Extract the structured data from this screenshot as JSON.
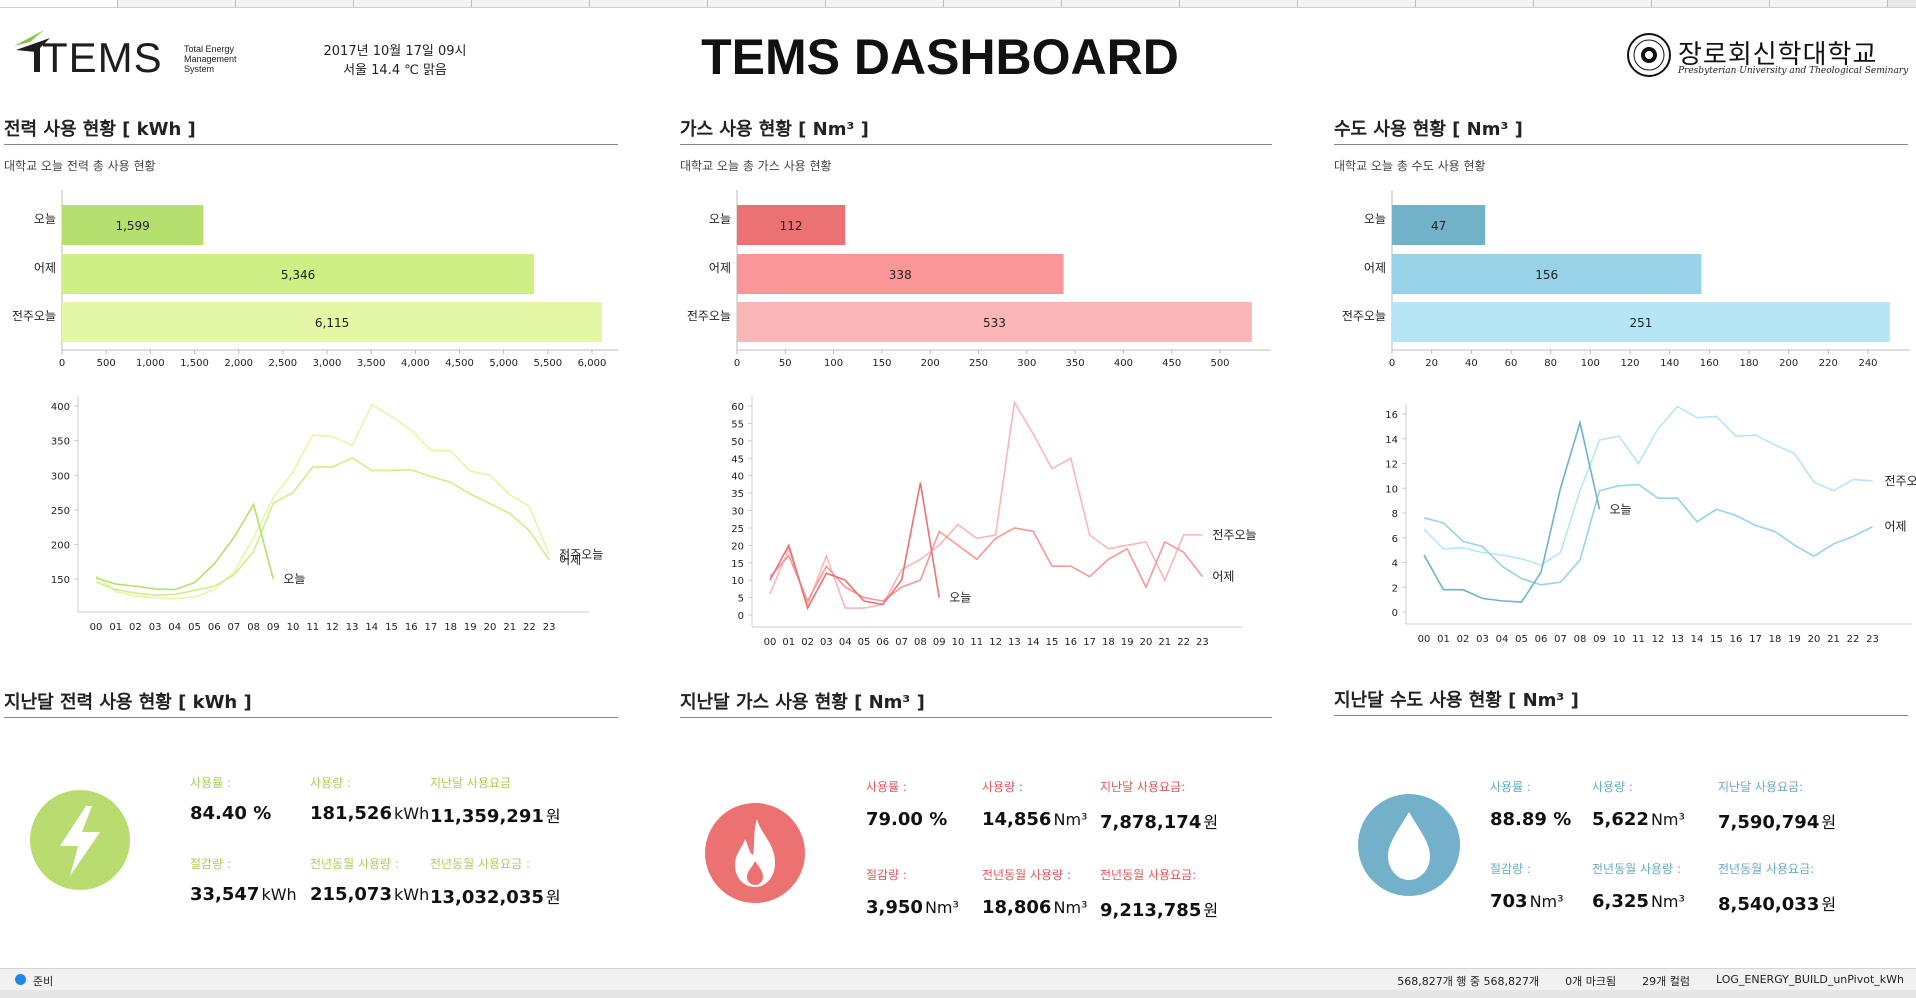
{
  "header": {
    "logo_text": "TEMS",
    "logo_sub": [
      "Total Energy",
      "Management",
      "System"
    ],
    "date": "2017년 10월 17일 09시",
    "weather": "서울  14.4 ℃  맑음",
    "title": "TEMS DASHBOARD",
    "university": "장로회신학대학교",
    "university_eng": "Presbyterian University and Theological Seminary"
  },
  "colors": {
    "elec": [
      "#b6e06e",
      "#cdef86",
      "#e3f7a6"
    ],
    "gas": [
      "#ec7172",
      "#f99798",
      "#fbb6b8"
    ],
    "water": [
      "#72b2c9",
      "#98d2e8",
      "#b6e6f6"
    ],
    "elec_icon": "#b9dc70",
    "gas_icon": "#ec7272",
    "water_icon": "#72b1c9",
    "elec_label": "#a9cf5c",
    "gas_label": "#e0595b",
    "water_label": "#6aaac2"
  },
  "panels": {
    "elec": {
      "title": "전력 사용 현황 [ kWh ]",
      "subtitle": "대학교 오늘 전력 총 사용 현황",
      "chart_data": {
        "type": "bar",
        "categories": [
          "오늘",
          "어제",
          "전주오늘"
        ],
        "values": [
          1599,
          5346,
          6115
        ],
        "value_labels": [
          "1,599",
          "5,346",
          "6,115"
        ],
        "xlim": [
          0,
          6000
        ],
        "ticks": [
          0,
          500,
          1000,
          1500,
          2000,
          2500,
          3000,
          3500,
          4000,
          4500,
          5000,
          5500,
          6000
        ],
        "tick_labels": [
          "0",
          "500",
          "1,000",
          "1,500",
          "2,000",
          "2,500",
          "3,000",
          "3,500",
          "4,000",
          "4,500",
          "5,000",
          "5,500",
          "6,000"
        ]
      }
    },
    "gas": {
      "title": "가스 사용 현황 [ Nm³ ]",
      "subtitle": "대학교 오늘 총 가스 사용 현황",
      "chart_data": {
        "type": "bar",
        "categories": [
          "오늘",
          "어제",
          "전주오늘"
        ],
        "values": [
          112,
          338,
          533
        ],
        "value_labels": [
          "112",
          "338",
          "533"
        ],
        "xlim": [
          0,
          500
        ],
        "ticks": [
          0,
          50,
          100,
          150,
          200,
          250,
          300,
          350,
          400,
          450,
          500
        ],
        "tick_labels": [
          "0",
          "50",
          "100",
          "150",
          "200",
          "250",
          "300",
          "350",
          "400",
          "450",
          "500"
        ]
      }
    },
    "water": {
      "title": "수도 사용 현황 [ Nm³ ]",
      "subtitle": "대학교 오늘 총 수도 사용 현황",
      "chart_data": {
        "type": "bar",
        "categories": [
          "오늘",
          "어제",
          "전주오늘"
        ],
        "values": [
          47,
          156,
          251
        ],
        "value_labels": [
          "47",
          "156",
          "251"
        ],
        "xlim": [
          0,
          240
        ],
        "ticks": [
          0,
          20,
          40,
          60,
          80,
          100,
          120,
          140,
          160,
          180,
          200,
          220,
          240
        ],
        "tick_labels": [
          "0",
          "20",
          "40",
          "60",
          "80",
          "100",
          "120",
          "140",
          "160",
          "180",
          "200",
          "220",
          "240"
        ]
      }
    }
  },
  "line_charts": {
    "hours": [
      "00",
      "01",
      "02",
      "03",
      "04",
      "05",
      "06",
      "07",
      "08",
      "09",
      "10",
      "11",
      "12",
      "13",
      "14",
      "15",
      "16",
      "17",
      "18",
      "19",
      "20",
      "21",
      "22",
      "23"
    ],
    "elec": {
      "chart_data": {
        "type": "line",
        "ylim": [
          120,
          400
        ],
        "yticks": [
          150,
          200,
          250,
          300,
          350,
          400
        ],
        "series": [
          {
            "name": "오늘",
            "values": [
              152,
              143,
              140,
              136,
              135,
              145,
              172,
              210,
              258,
              150
            ]
          },
          {
            "name": "어제",
            "values": [
              146,
              135,
              130,
              127,
              128,
              134,
              140,
              156,
              190,
              260,
              275,
              312,
              312,
              325,
              307,
              307,
              308,
              298,
              290,
              273,
              259,
              245,
              220,
              178
            ]
          },
          {
            "name": "전주오늘",
            "values": [
              155,
              132,
              126,
              123,
              122,
              124,
              135,
              160,
              210,
              268,
              305,
              358,
              356,
              343,
              402,
              385,
              365,
              336,
              335,
              306,
              300,
              272,
              255,
              186
            ]
          }
        ],
        "end_labels": [
          "전주오늘",
          "어제"
        ],
        "today_label": "오늘"
      }
    },
    "gas": {
      "chart_data": {
        "type": "line",
        "ylim": [
          0,
          60
        ],
        "yticks": [
          0,
          5,
          10,
          15,
          20,
          25,
          30,
          35,
          40,
          45,
          50,
          55,
          60
        ],
        "series": [
          {
            "name": "오늘",
            "values": [
              10,
              20,
              2,
              12,
              10,
              4,
              3,
              10,
              38,
              5
            ]
          },
          {
            "name": "어제",
            "values": [
              11,
              17,
              4,
              14,
              8,
              5,
              4,
              8,
              10,
              24,
              20,
              16,
              22,
              25,
              24,
              14,
              14,
              11,
              16,
              19,
              8,
              21,
              18,
              11
            ]
          },
          {
            "name": "전주오늘",
            "values": [
              6,
              19,
              3,
              17,
              2,
              2,
              3,
              13,
              16,
              20,
              26,
              22,
              23,
              61,
              52,
              42,
              45,
              23,
              19,
              20,
              21,
              10,
              23,
              23
            ]
          }
        ],
        "end_labels": [
          "전주오늘",
          "어제"
        ],
        "today_label": "오늘"
      }
    },
    "water": {
      "chart_data": {
        "type": "line",
        "ylim": [
          0,
          16
        ],
        "yticks": [
          0,
          2,
          4,
          6,
          8,
          10,
          12,
          14,
          16
        ],
        "series": [
          {
            "name": "오늘",
            "values": [
              4.6,
              1.8,
              1.8,
              1.1,
              0.9,
              0.8,
              3.2,
              10.0,
              15.3,
              8.3
            ]
          },
          {
            "name": "어제",
            "values": [
              7.6,
              7.2,
              5.7,
              5.3,
              3.7,
              2.7,
              2.2,
              2.4,
              4.2,
              9.8,
              10.2,
              10.3,
              9.2,
              9.2,
              7.3,
              8.3,
              7.8,
              7.0,
              6.5,
              5.4,
              4.5,
              5.5,
              6.1,
              6.9
            ]
          },
          {
            "name": "전주오늘",
            "values": [
              6.7,
              5.1,
              5.2,
              4.8,
              4.6,
              4.3,
              3.8,
              4.8,
              9.8,
              13.9,
              14.2,
              12.0,
              14.8,
              16.6,
              15.7,
              15.8,
              14.2,
              14.3,
              13.5,
              12.8,
              10.5,
              9.8,
              10.7,
              10.6
            ]
          }
        ],
        "end_labels": [
          "전주오늘",
          "어제"
        ],
        "today_label": "오늘"
      }
    }
  },
  "monthly": {
    "elec": {
      "title": "지난달 전력 사용 현황 [ kWh ]",
      "icon": "lightning-icon",
      "stats": [
        {
          "label": "사용률 :",
          "value": "84.40 %",
          "unit": ""
        },
        {
          "label": "사용량 :",
          "value": "181,526",
          "unit": "kWh"
        },
        {
          "label": "지난달 사용요금",
          "value": "11,359,291",
          "unit": "원"
        },
        {
          "label": "절감량 :",
          "value": "33,547",
          "unit": "kWh"
        },
        {
          "label": "전년동월 사용량 :",
          "value": "215,073",
          "unit": "kWh"
        },
        {
          "label": "전년동월 사용요금 :",
          "value": "13,032,035",
          "unit": "원"
        }
      ]
    },
    "gas": {
      "title": "지난달 가스 사용 현황 [ Nm³ ]",
      "icon": "flame-icon",
      "stats": [
        {
          "label": "사용률 :",
          "value": "79.00 %",
          "unit": ""
        },
        {
          "label": "사용량 :",
          "value": "14,856",
          "unit": "Nm³"
        },
        {
          "label": "지난달 사용요금:",
          "value": "7,878,174",
          "unit": "원"
        },
        {
          "label": "절감량 :",
          "value": "3,950",
          "unit": "Nm³"
        },
        {
          "label": "전년동월 사용량 :",
          "value": "18,806",
          "unit": "Nm³"
        },
        {
          "label": "전년동월 사용요금:",
          "value": "9,213,785",
          "unit": "원"
        }
      ]
    },
    "water": {
      "title": "지난달 수도 사용 현황 [ Nm³ ]",
      "icon": "water-drop-icon",
      "stats": [
        {
          "label": "사용률 :",
          "value": "88.89 %",
          "unit": ""
        },
        {
          "label": "사용량 :",
          "value": "5,622",
          "unit": "Nm³"
        },
        {
          "label": "지난달 사용요금:",
          "value": "7,590,794",
          "unit": "원"
        },
        {
          "label": "절감량 :",
          "value": "703",
          "unit": "Nm³"
        },
        {
          "label": "전년동월 사용량 :",
          "value": "6,325",
          "unit": "Nm³"
        },
        {
          "label": "전년동월 사용요금:",
          "value": "8,540,033",
          "unit": "원"
        }
      ]
    }
  },
  "statusbar": {
    "ready": "준비",
    "rows": "568,827개 행 중 568,827개",
    "marked": "0개 마크됨",
    "columns": "29개 컬럼",
    "source": "LOG_ENERGY_BUILD_unPivot_kWh"
  }
}
